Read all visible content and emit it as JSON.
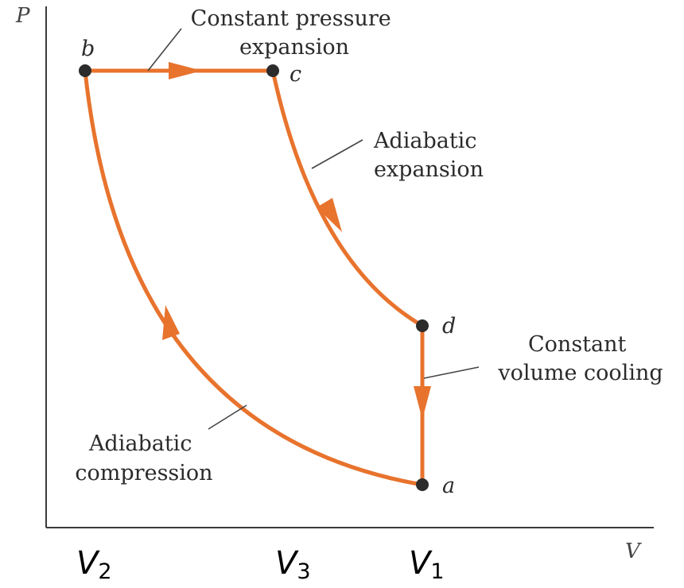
{
  "axes": {
    "y_label": "P",
    "x_label": "V"
  },
  "points": {
    "a": "a",
    "b": "b",
    "c": "c",
    "d": "d"
  },
  "processes": {
    "constant_pressure": {
      "line1": "Constant pressure",
      "line2": "expansion"
    },
    "adiabatic_expansion": {
      "line1": "Adiabatic",
      "line2": "expansion"
    },
    "constant_volume": {
      "line1": "Constant",
      "line2": "volume cooling"
    },
    "adiabatic_compression": {
      "line1": "Adiabatic",
      "line2": "compression"
    }
  },
  "volumes": {
    "v2": {
      "symbol": "V",
      "subscript": "2"
    },
    "v3": {
      "symbol": "V",
      "subscript": "3"
    },
    "v1": {
      "symbol": "V",
      "subscript": "1"
    }
  },
  "colors": {
    "curve": "#e8732d",
    "point": "#2b2b2b",
    "axis": "#3a3a3a"
  }
}
